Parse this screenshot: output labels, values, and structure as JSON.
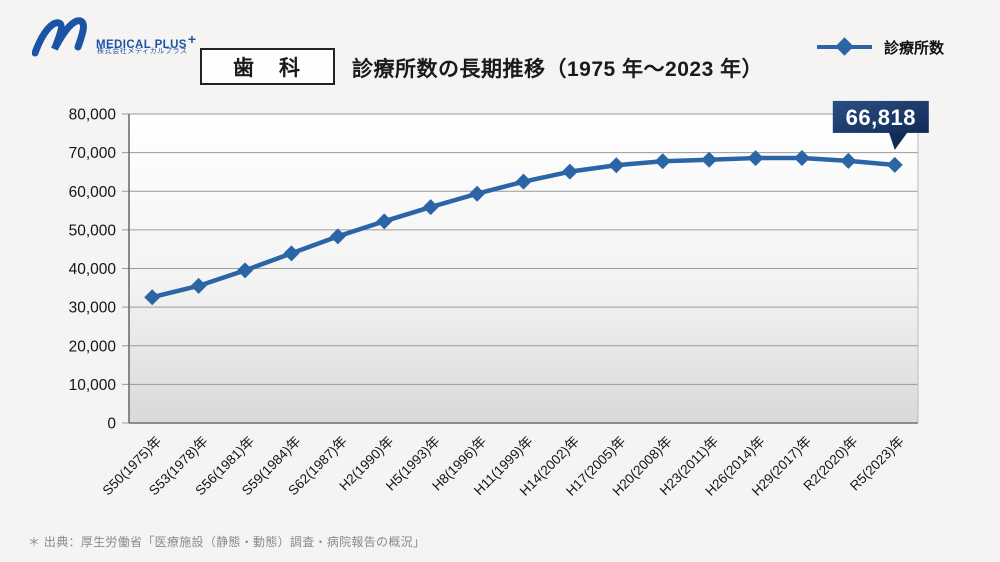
{
  "logo": {
    "brand": "MEDICAL PLUS",
    "plus": "+",
    "company": "株式会社メディカルプラス",
    "color": "#1b53a6"
  },
  "header": {
    "category_label": "歯　科",
    "title": "診療所数の長期推移（1975 年～2023 年）"
  },
  "legend": {
    "label": "診療所数"
  },
  "chart_data": {
    "type": "line",
    "title": "診療所数の長期推移（1975年～2023年）",
    "xlabel": "",
    "ylabel": "",
    "grid": true,
    "legend_position": "top-right",
    "line_color": "#2b65a5",
    "marker": "diamond",
    "ylim": [
      0,
      80000
    ],
    "ytick_step": 10000,
    "ytick_labels": [
      "0",
      "10,000",
      "20,000",
      "30,000",
      "40,000",
      "50,000",
      "60,000",
      "70,000",
      "80,000"
    ],
    "categories": [
      "S50(1975)年",
      "S53(1978)年",
      "S56(1981)年",
      "S59(1984)年",
      "S62(1987)年",
      "H2(1990)年",
      "H5(1993)年",
      "H8(1996)年",
      "H11(1999)年",
      "H14(2002)年",
      "H17(2005)年",
      "H20(2008)年",
      "H23(2011)年",
      "H26(2014)年",
      "H29(2017)年",
      "R2(2020)年",
      "R5(2023)年"
    ],
    "series": [
      {
        "name": "診療所数",
        "values": [
          32565,
          35508,
          39516,
          43926,
          48309,
          52216,
          55906,
          59357,
          62484,
          65073,
          66732,
          67779,
          68156,
          68592,
          68609,
          67874,
          66818
        ]
      }
    ],
    "annotation": {
      "label": "66,818",
      "category": "R5(2023)年",
      "bg_top": "#2a4f86",
      "bg_bottom": "#122a54",
      "text_color": "#ffffff"
    }
  },
  "footnote": {
    "text": "＊ 出典：厚生労働省「医療施設（静態・動態）調査・病院報告の概況」"
  }
}
